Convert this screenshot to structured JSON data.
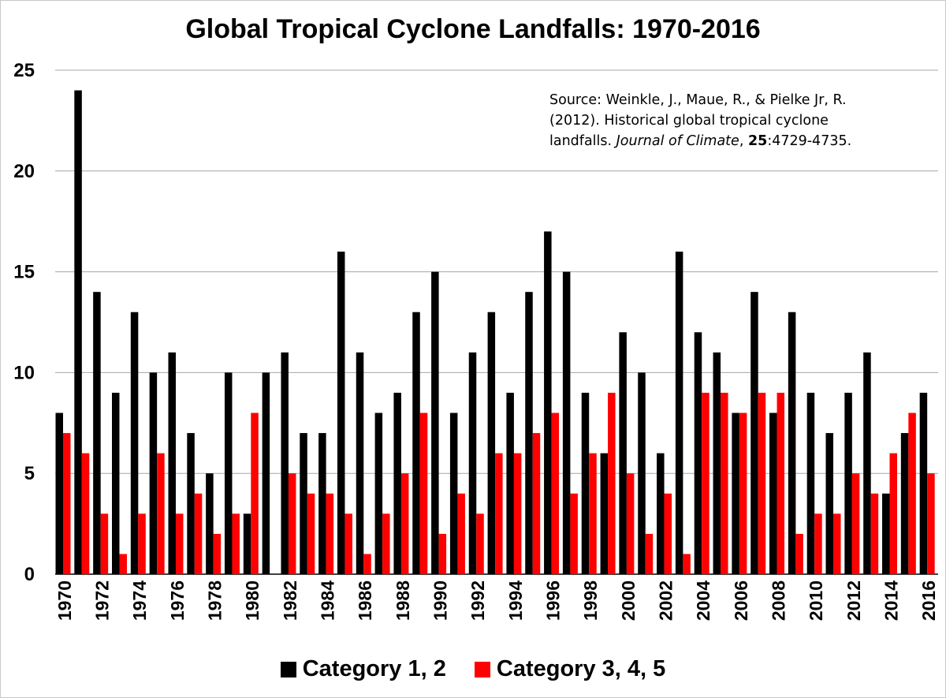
{
  "chart_data": {
    "type": "bar",
    "title": "Global Tropical Cyclone Landfalls: 1970-2016",
    "xlabel": "",
    "ylabel": "",
    "ylim": [
      0,
      25
    ],
    "yticks": [
      "0",
      "5",
      "10",
      "15",
      "20",
      "25"
    ],
    "xtick_labels": [
      "1970",
      "1972",
      "1974",
      "1976",
      "1978",
      "1980",
      "1982",
      "1984",
      "1986",
      "1988",
      "1990",
      "1992",
      "1994",
      "1996",
      "1998",
      "2000",
      "2002",
      "2004",
      "2006",
      "2008",
      "2010",
      "2012",
      "2014",
      "2016"
    ],
    "categories": [
      "1970",
      "1971",
      "1972",
      "1973",
      "1974",
      "1975",
      "1976",
      "1977",
      "1978",
      "1979",
      "1980",
      "1981",
      "1982",
      "1983",
      "1984",
      "1985",
      "1986",
      "1987",
      "1988",
      "1989",
      "1990",
      "1991",
      "1992",
      "1993",
      "1994",
      "1995",
      "1996",
      "1997",
      "1998",
      "1999",
      "2000",
      "2001",
      "2002",
      "2003",
      "2004",
      "2005",
      "2006",
      "2007",
      "2008",
      "2009",
      "2010",
      "2011",
      "2012",
      "2013",
      "2014",
      "2015",
      "2016"
    ],
    "series": [
      {
        "name": "Category 1, 2",
        "color": "#000000",
        "values": [
          8,
          24,
          14,
          9,
          13,
          10,
          11,
          7,
          5,
          10,
          3,
          10,
          11,
          7,
          7,
          16,
          11,
          8,
          9,
          13,
          15,
          8,
          11,
          13,
          9,
          14,
          17,
          15,
          9,
          6,
          12,
          10,
          6,
          16,
          12,
          11,
          8,
          14,
          8,
          13,
          9,
          7,
          9,
          11,
          4,
          7,
          9
        ]
      },
      {
        "name": "Category 3, 4, 5",
        "color": "#ff0000",
        "values": [
          7,
          6,
          3,
          1,
          3,
          6,
          3,
          4,
          2,
          3,
          8,
          0,
          5,
          4,
          4,
          3,
          1,
          3,
          5,
          8,
          2,
          4,
          3,
          6,
          6,
          7,
          8,
          4,
          6,
          9,
          5,
          2,
          4,
          1,
          9,
          9,
          8,
          9,
          9,
          2,
          3,
          3,
          5,
          4,
          6,
          8,
          5
        ]
      }
    ],
    "grid": true,
    "legend_position": "bottom",
    "annotation": {
      "line1": "Source: Weinkle, J., Maue, R., & Pielke Jr, R.",
      "line2": "(2012). Historical global tropical cyclone",
      "line3_prefix": "landfalls. ",
      "journal": "Journal of Climate",
      "sep": ", ",
      "volume": "25",
      "pages": ":4729-4735."
    }
  }
}
